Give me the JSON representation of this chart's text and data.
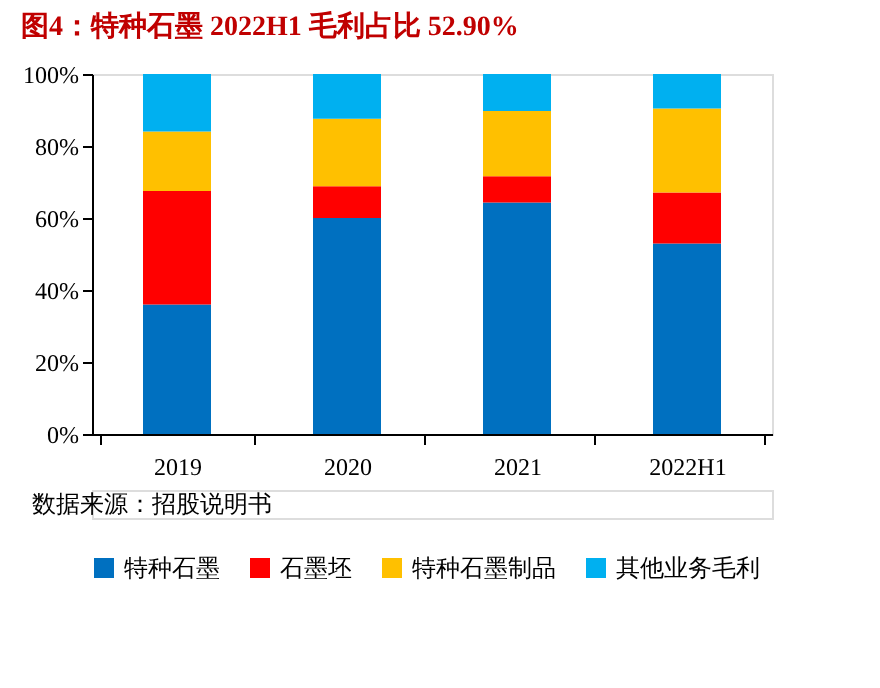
{
  "chart_data": {
    "type": "bar",
    "title": "图4：特种石墨 2022H1 毛利占比 52.90%",
    "categories": [
      "2019",
      "2020",
      "2021",
      "2022H1"
    ],
    "series": [
      {
        "name": "特种石墨",
        "color": "#0070c0",
        "values": [
          36,
          60,
          64.3,
          52.9
        ]
      },
      {
        "name": "石墨坯",
        "color": "#ff0000",
        "values": [
          31.5,
          8.8,
          7.3,
          14.2
        ]
      },
      {
        "name": "特种石墨制品",
        "color": "#ffc000",
        "values": [
          16.5,
          18.8,
          18.1,
          23.3
        ]
      },
      {
        "name": "其他业务毛利",
        "color": "#00b0f0",
        "values": [
          16,
          12.4,
          10.3,
          9.6
        ]
      }
    ],
    "stacked": true,
    "ylim": [
      0,
      100
    ],
    "yticks": [
      {
        "value": 0,
        "label": "0%"
      },
      {
        "value": 20,
        "label": "20%"
      },
      {
        "value": 40,
        "label": "40%"
      },
      {
        "value": 60,
        "label": "60%"
      },
      {
        "value": 80,
        "label": "80%"
      },
      {
        "value": 100,
        "label": "100%"
      }
    ],
    "grid": false,
    "legend": "bottom",
    "annotations": [
      "数据来源：招股说明书"
    ]
  }
}
